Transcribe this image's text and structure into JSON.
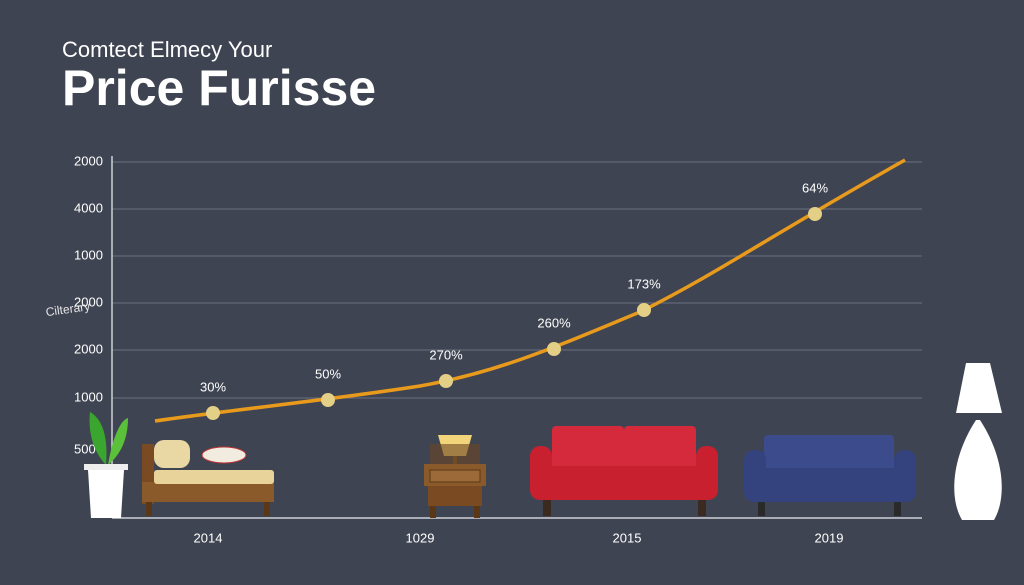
{
  "header": {
    "subtitle": "Comtect Elmecy Your",
    "title": "Price Furisse"
  },
  "axis_title": "Cilterary",
  "y_axis_labels": [
    "2000",
    "4000",
    "1000",
    "2000",
    "2000",
    "1000",
    "500"
  ],
  "x_axis_labels": [
    "2014",
    "1029",
    "2015",
    "2019"
  ],
  "point_labels": [
    "30%",
    "50%",
    "270%",
    "260%",
    "173%",
    "64%"
  ]
}
